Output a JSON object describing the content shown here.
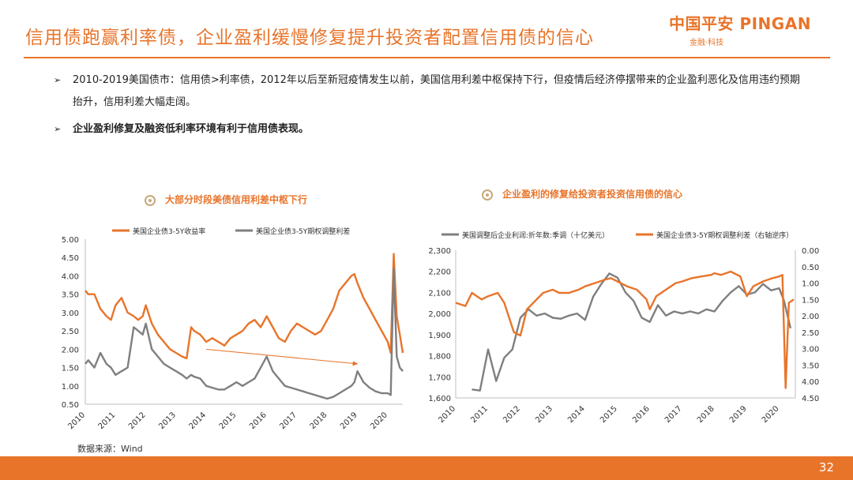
{
  "header": {
    "title": "信用债跑赢利率债，企业盈利缓慢修复提升投资者配置信用债的信心",
    "logo_main": "中国平安 PINGAN",
    "logo_sub": "金融·科技"
  },
  "bullets": [
    {
      "marker": "➢",
      "text": "2010-2019美国债市：信用债>利率债，2012年以后至新冠疫情发生以前，美国信用利差中枢保持下行，但疫情后经济停摆带来的企业盈利恶化及信用违约预期抬升，信用利差大幅走阔。"
    },
    {
      "marker": "➢",
      "text": "企业盈利修复及融资低利率环境有利于信用债表现。"
    }
  ],
  "source": "数据来源：Wind",
  "page_number": "32",
  "colors": {
    "orange": "#e8742a",
    "gray": "#7f7f7f",
    "accent_ring": "#c8a878"
  },
  "chart_data": [
    {
      "type": "line",
      "title": "大部分时段美债信用利差中枢下行",
      "ylim": [
        0.5,
        5.0
      ],
      "yticks": [
        "5.00",
        "4.50",
        "4.00",
        "3.50",
        "3.00",
        "2.50",
        "2.00",
        "1.50",
        "1.00",
        "0.50"
      ],
      "xticks": [
        "2010",
        "2011",
        "2012",
        "2013",
        "2014",
        "2015",
        "2016",
        "2017",
        "2018",
        "2019",
        "2020"
      ],
      "xlim": [
        2010.0,
        2020.5
      ],
      "annotation": "arrow: spread trending downward 2014-2019",
      "series": [
        {
          "name": "美国企业债3-5Y收益率",
          "color": "#e8742a",
          "x": [
            2010.0,
            2010.1,
            2010.3,
            2010.5,
            2010.7,
            2010.85,
            2011.0,
            2011.2,
            2011.4,
            2011.6,
            2011.75,
            2011.9,
            2012.0,
            2012.2,
            2012.4,
            2012.6,
            2012.8,
            2013.0,
            2013.2,
            2013.35,
            2013.5,
            2013.6,
            2013.8,
            2014.0,
            2014.2,
            2014.4,
            2014.6,
            2014.8,
            2015.0,
            2015.2,
            2015.4,
            2015.6,
            2015.8,
            2016.0,
            2016.2,
            2016.4,
            2016.6,
            2016.8,
            2017.0,
            2017.2,
            2017.4,
            2017.6,
            2017.8,
            2018.0,
            2018.2,
            2018.4,
            2018.6,
            2018.8,
            2018.9,
            2019.0,
            2019.2,
            2019.4,
            2019.6,
            2019.8,
            2020.0,
            2020.1,
            2020.2,
            2020.3,
            2020.4,
            2020.5
          ],
          "y": [
            3.6,
            3.5,
            3.5,
            3.1,
            2.9,
            2.8,
            3.2,
            3.4,
            3.0,
            2.9,
            2.8,
            2.9,
            3.2,
            2.7,
            2.4,
            2.2,
            2.0,
            1.9,
            1.8,
            1.75,
            2.6,
            2.5,
            2.4,
            2.2,
            2.3,
            2.2,
            2.1,
            2.3,
            2.4,
            2.5,
            2.7,
            2.8,
            2.6,
            2.9,
            2.6,
            2.3,
            2.2,
            2.5,
            2.7,
            2.6,
            2.5,
            2.4,
            2.5,
            2.8,
            3.1,
            3.6,
            3.8,
            4.0,
            4.05,
            3.8,
            3.4,
            3.1,
            2.8,
            2.5,
            2.2,
            1.9,
            4.6,
            2.9,
            2.4,
            1.9
          ]
        },
        {
          "name": "美国企业债3-5Y期权调整利差",
          "color": "#7f7f7f",
          "x": [
            2010.0,
            2010.1,
            2010.3,
            2010.5,
            2010.7,
            2010.85,
            2011.0,
            2011.2,
            2011.4,
            2011.6,
            2011.75,
            2011.9,
            2012.0,
            2012.2,
            2012.4,
            2012.6,
            2012.8,
            2013.0,
            2013.2,
            2013.35,
            2013.5,
            2013.6,
            2013.8,
            2014.0,
            2014.2,
            2014.4,
            2014.6,
            2014.8,
            2015.0,
            2015.2,
            2015.4,
            2015.6,
            2015.8,
            2016.0,
            2016.2,
            2016.4,
            2016.6,
            2016.8,
            2017.0,
            2017.2,
            2017.4,
            2017.6,
            2017.8,
            2018.0,
            2018.2,
            2018.4,
            2018.6,
            2018.8,
            2018.9,
            2019.0,
            2019.2,
            2019.4,
            2019.6,
            2019.8,
            2020.0,
            2020.1,
            2020.2,
            2020.3,
            2020.4,
            2020.5
          ],
          "y": [
            1.6,
            1.7,
            1.5,
            1.9,
            1.6,
            1.5,
            1.3,
            1.4,
            1.5,
            2.6,
            2.5,
            2.4,
            2.7,
            2.0,
            1.8,
            1.6,
            1.5,
            1.4,
            1.3,
            1.2,
            1.3,
            1.25,
            1.2,
            1.0,
            0.95,
            0.9,
            0.9,
            1.0,
            1.1,
            1.0,
            1.1,
            1.2,
            1.5,
            1.8,
            1.4,
            1.2,
            1.0,
            0.95,
            0.9,
            0.85,
            0.8,
            0.75,
            0.7,
            0.65,
            0.7,
            0.8,
            0.9,
            1.0,
            1.1,
            1.4,
            1.1,
            0.95,
            0.85,
            0.8,
            0.8,
            0.75,
            4.2,
            1.8,
            1.5,
            1.4
          ]
        }
      ]
    },
    {
      "type": "line",
      "title": "企业盈利的修复给投资者投资信用债的信心",
      "ylim": [
        1600,
        2300
      ],
      "yticks": [
        "2,300",
        "2,200",
        "2,100",
        "2,000",
        "1,900",
        "1,800",
        "1,700",
        "1,600"
      ],
      "y2lim": [
        0.0,
        4.5
      ],
      "y2ticks": [
        "0.00",
        "0.50",
        "1.00",
        "1.50",
        "2.00",
        "2.50",
        "3.00",
        "3.50",
        "4.00",
        "4.50"
      ],
      "y2_inverted": true,
      "xticks": [
        "2010",
        "2011",
        "2012",
        "2013",
        "2014",
        "2015",
        "2016",
        "2017",
        "2018",
        "2019",
        "2020"
      ],
      "xlim": [
        2010.0,
        2020.5
      ],
      "series": [
        {
          "name": "美国调整后企业利润:折年数:季调（十亿美元）",
          "color": "#7f7f7f",
          "axis": "left",
          "x": [
            2010.5,
            2010.75,
            2011.0,
            2011.25,
            2011.5,
            2011.75,
            2012.0,
            2012.25,
            2012.5,
            2012.75,
            2013.0,
            2013.25,
            2013.5,
            2013.75,
            2014.0,
            2014.25,
            2014.5,
            2014.75,
            2015.0,
            2015.25,
            2015.5,
            2015.75,
            2016.0,
            2016.25,
            2016.5,
            2016.75,
            2017.0,
            2017.25,
            2017.5,
            2017.75,
            2018.0,
            2018.25,
            2018.5,
            2018.75,
            2019.0,
            2019.25,
            2019.5,
            2019.75,
            2020.0,
            2020.15,
            2020.35
          ],
          "y": [
            1640,
            1635,
            1830,
            1680,
            1790,
            1830,
            1980,
            2020,
            1990,
            2000,
            1980,
            1975,
            1990,
            2000,
            1970,
            2080,
            2140,
            2190,
            2170,
            2100,
            2060,
            1980,
            1960,
            2040,
            1990,
            2010,
            2000,
            2010,
            2000,
            2020,
            2010,
            2060,
            2100,
            2130,
            2090,
            2100,
            2140,
            2110,
            2120,
            2060,
            1930
          ]
        },
        {
          "name": "美国企业债3-5Y期权调整利差（右轴逆序）",
          "color": "#e8742a",
          "axis": "right",
          "x": [
            2010.0,
            2010.3,
            2010.5,
            2010.8,
            2011.0,
            2011.3,
            2011.5,
            2011.8,
            2012.0,
            2012.2,
            2012.4,
            2012.7,
            2013.0,
            2013.2,
            2013.5,
            2013.8,
            2014.0,
            2014.3,
            2014.6,
            2014.8,
            2015.0,
            2015.3,
            2015.6,
            2015.9,
            2016.0,
            2016.2,
            2016.5,
            2016.8,
            2017.0,
            2017.3,
            2017.6,
            2017.9,
            2018.0,
            2018.2,
            2018.5,
            2018.8,
            2019.0,
            2019.2,
            2019.5,
            2019.8,
            2020.0,
            2020.1,
            2020.2,
            2020.3,
            2020.45
          ],
          "y": [
            1.6,
            1.7,
            1.3,
            1.5,
            1.4,
            1.3,
            1.6,
            2.5,
            2.6,
            1.8,
            1.6,
            1.3,
            1.2,
            1.3,
            1.3,
            1.2,
            1.1,
            1.0,
            0.9,
            0.85,
            0.95,
            1.1,
            1.2,
            1.5,
            1.8,
            1.4,
            1.2,
            1.0,
            0.95,
            0.85,
            0.8,
            0.75,
            0.7,
            0.75,
            0.65,
            0.8,
            1.4,
            1.1,
            0.95,
            0.85,
            0.8,
            0.75,
            4.2,
            1.6,
            1.5
          ]
        }
      ]
    }
  ]
}
